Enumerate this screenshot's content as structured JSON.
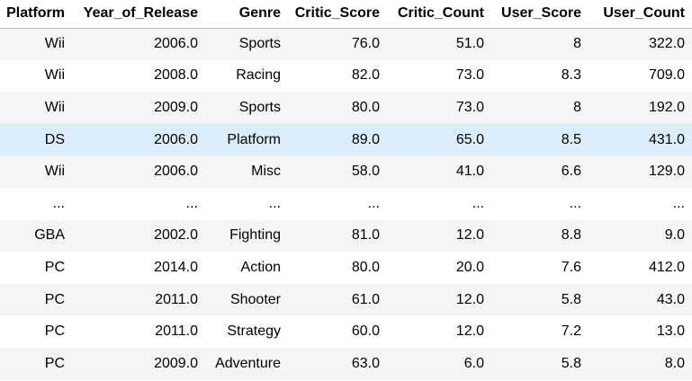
{
  "table": {
    "columns": [
      "Platform",
      "Year_of_Release",
      "Genre",
      "Critic_Score",
      "Critic_Count",
      "User_Score",
      "User_Count"
    ],
    "rows": [
      [
        "Wii",
        "2006.0",
        "Sports",
        "76.0",
        "51.0",
        "8",
        "322.0"
      ],
      [
        "Wii",
        "2008.0",
        "Racing",
        "82.0",
        "73.0",
        "8.3",
        "709.0"
      ],
      [
        "Wii",
        "2009.0",
        "Sports",
        "80.0",
        "73.0",
        "8",
        "192.0"
      ],
      [
        "DS",
        "2006.0",
        "Platform",
        "89.0",
        "65.0",
        "8.5",
        "431.0"
      ],
      [
        "Wii",
        "2006.0",
        "Misc",
        "58.0",
        "41.0",
        "6.6",
        "129.0"
      ],
      [
        "...",
        "...",
        "...",
        "...",
        "...",
        "...",
        "..."
      ],
      [
        "GBA",
        "2002.0",
        "Fighting",
        "81.0",
        "12.0",
        "8.8",
        "9.0"
      ],
      [
        "PC",
        "2014.0",
        "Action",
        "80.0",
        "20.0",
        "7.6",
        "412.0"
      ],
      [
        "PC",
        "2011.0",
        "Shooter",
        "61.0",
        "12.0",
        "5.8",
        "43.0"
      ],
      [
        "PC",
        "2011.0",
        "Strategy",
        "60.0",
        "12.0",
        "7.2",
        "13.0"
      ],
      [
        "PC",
        "2009.0",
        "Adventure",
        "63.0",
        "6.0",
        "5.8",
        "8.0"
      ]
    ],
    "highlight_row_color": "#dceefc",
    "stripe_color": "#f5f5f5"
  }
}
